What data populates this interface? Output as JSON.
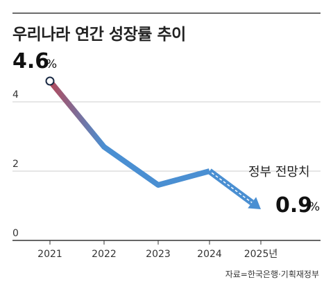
{
  "chart_data": {
    "type": "line",
    "title": "우리나라 연간 성장률 추이",
    "categories": [
      "2021",
      "2022",
      "2023",
      "2024",
      "2025년"
    ],
    "values": [
      4.6,
      2.7,
      1.6,
      2.0,
      0.9
    ],
    "unit": "%",
    "actual_range": [
      "2021",
      "2024"
    ],
    "forecast_range": [
      "2024",
      "2025년"
    ],
    "forecast_label": "정부 전망치",
    "start_label": "4.6",
    "end_label": "0.9",
    "yticks": [
      0,
      2,
      4
    ],
    "ylim": [
      0,
      5
    ],
    "grid": true,
    "colors": {
      "line_start": "#b24a5c",
      "line_main": "#4a8fd2",
      "forecast": "#4a8fd2",
      "grid": "#cccccc",
      "axis": "#333333"
    },
    "source": "자료=한국은행·기획재정부"
  }
}
